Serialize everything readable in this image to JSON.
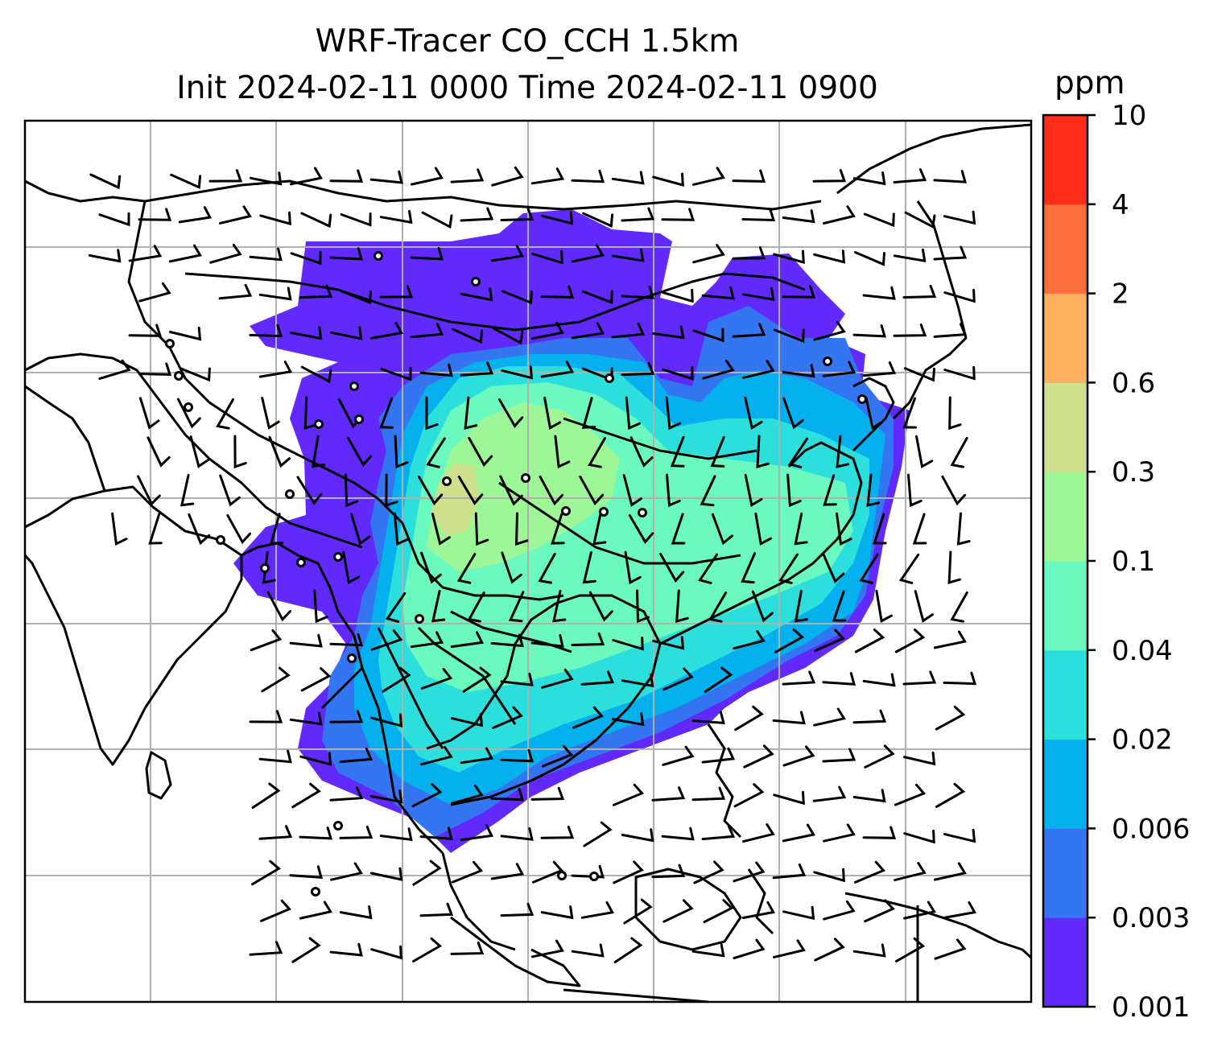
{
  "title": {
    "line1": "WRF-Tracer CO_CCH 1.5km",
    "line2": "Init 2024-02-11 0000 Time 2024-02-11 0900"
  },
  "colorbar": {
    "unit": "ppm",
    "tick_labels": [
      "0.001",
      "0.003",
      "0.006",
      "0.02",
      "0.04",
      "0.1",
      "0.3",
      "0.6",
      "2",
      "4",
      "10"
    ],
    "colors": [
      "#6129fb",
      "#3475f2",
      "#05b0ee",
      "#2ddfdc",
      "#6cf9c0",
      "#9ef797",
      "#cfe08c",
      "#ffb05e",
      "#ff6f3c",
      "#ff2c1a"
    ]
  },
  "map": {
    "grid_color": "#b0b0b0",
    "coast_color": "#000000",
    "marker_stations": 28
  },
  "chart_data": {
    "type": "heatmap",
    "variable": "CO_CCH",
    "level": "1.5km",
    "units": "ppm",
    "levels": [
      0.001,
      0.003,
      0.006,
      0.02,
      0.04,
      0.1,
      0.3,
      0.6,
      2,
      4,
      10
    ],
    "overlay": "wind barbs",
    "grid": true
  }
}
